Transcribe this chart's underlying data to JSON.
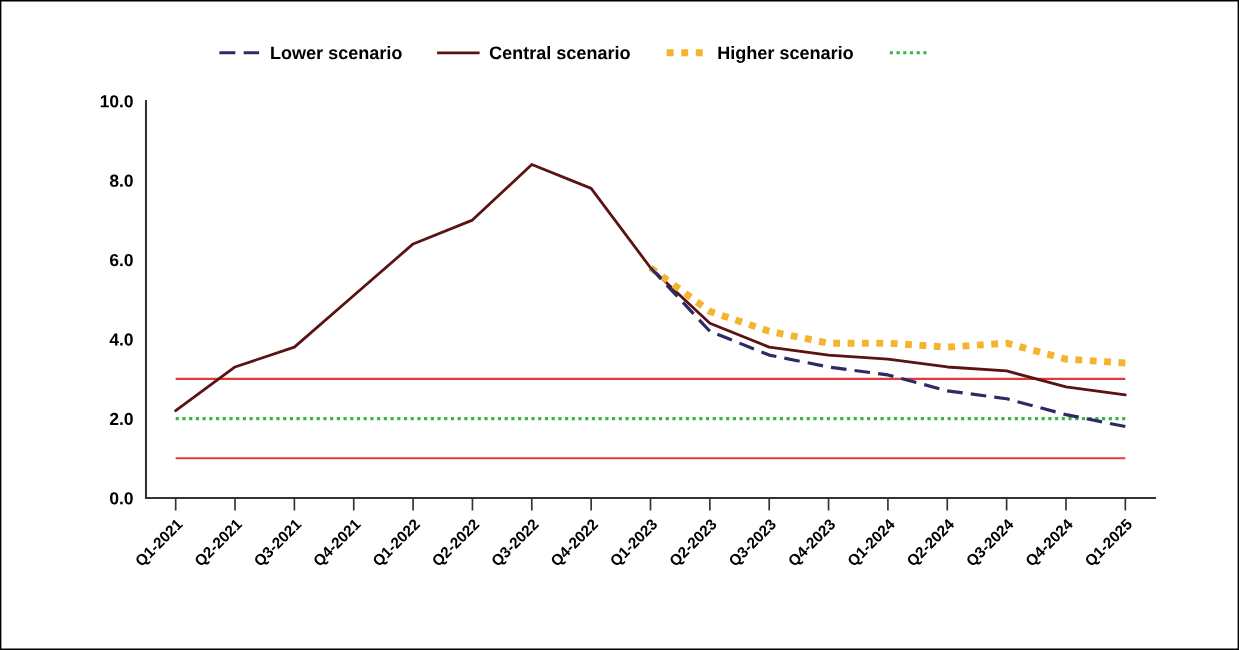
{
  "chart_data": {
    "type": "line",
    "categories": [
      "Q1-2021",
      "Q2-2021",
      "Q3-2021",
      "Q4-2021",
      "Q1-2022",
      "Q2-2022",
      "Q3-2022",
      "Q4-2022",
      "Q1-2023",
      "Q2-2023",
      "Q3-2023",
      "Q4-2023",
      "Q1-2024",
      "Q2-2024",
      "Q3-2024",
      "Q4-2024",
      "Q1-2025"
    ],
    "series": [
      {
        "name": "Lower scenario",
        "color": "#2b2b66",
        "line_style": "dashed",
        "values": [
          null,
          null,
          null,
          null,
          null,
          null,
          null,
          null,
          5.8,
          4.2,
          3.6,
          3.3,
          3.1,
          2.7,
          2.5,
          2.1,
          1.8
        ]
      },
      {
        "name": "Central scenario",
        "color": "#5a1212",
        "line_style": "solid",
        "values": [
          2.2,
          3.3,
          3.8,
          5.1,
          6.4,
          7.0,
          8.4,
          7.8,
          5.8,
          4.4,
          3.8,
          3.6,
          3.5,
          3.3,
          3.2,
          2.8,
          2.6
        ]
      },
      {
        "name": "Higher scenario",
        "color": "#f5b430",
        "line_style": "dotted",
        "values": [
          null,
          null,
          null,
          null,
          null,
          null,
          null,
          null,
          5.8,
          4.7,
          4.2,
          3.9,
          3.9,
          3.8,
          3.9,
          3.5,
          3.4
        ]
      },
      {
        "color": "#3ab54a",
        "line_style": "dotted",
        "values": [
          2.0,
          2.0,
          2.0,
          2.0,
          2.0,
          2.0,
          2.0,
          2.0,
          2.0,
          2.0,
          2.0,
          2.0,
          2.0,
          2.0,
          2.0,
          2.0,
          2.0
        ]
      }
    ],
    "ylim": [
      0,
      10
    ],
    "yticks": [
      {
        "value": 0,
        "label": "0.0"
      },
      {
        "value": 2,
        "label": "2.0"
      },
      {
        "value": 4,
        "label": "4.0"
      },
      {
        "value": 6,
        "label": "6.0"
      },
      {
        "value": 8,
        "label": "8.0"
      },
      {
        "value": 10,
        "label": "10.0"
      }
    ],
    "ref_lines": [
      {
        "axis": "y",
        "value": 3,
        "color": "#e03a3a"
      },
      {
        "axis": "y",
        "value": 1,
        "color": "#e03a3a"
      }
    ],
    "legend": "top"
  }
}
